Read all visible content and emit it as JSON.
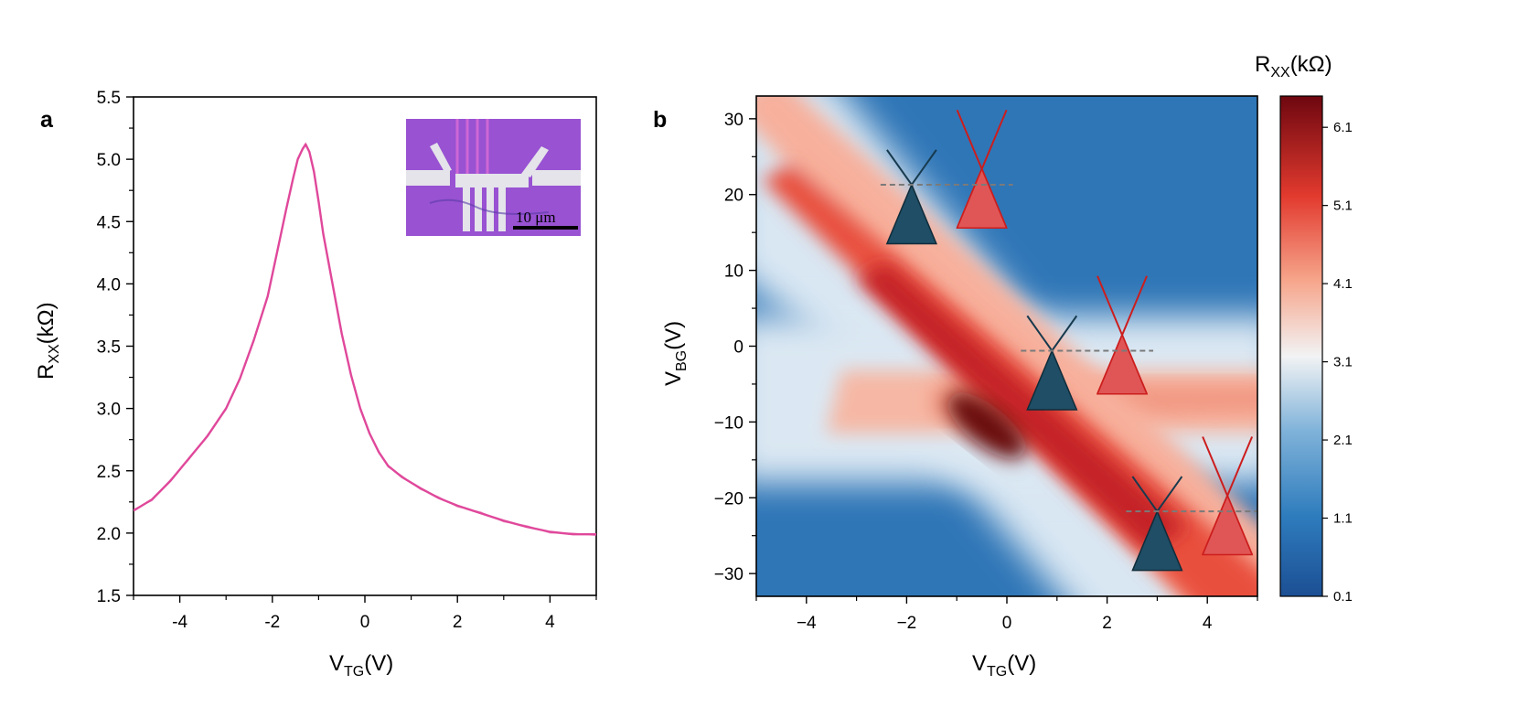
{
  "chart_data": [
    {
      "panel": "a",
      "type": "line",
      "xlabel": "V",
      "xlabel_sub": "TG",
      "xlabel_tail": "(V)",
      "ylabel": "R",
      "ylabel_sub": "XX",
      "ylabel_tail": "(kΩ)",
      "xlim": [
        -5,
        5
      ],
      "ylim": [
        1.5,
        5.5
      ],
      "xticks": [
        -4,
        -2,
        0,
        2,
        4
      ],
      "xtick_labels": [
        "-4",
        "-2",
        "0",
        "2",
        "4"
      ],
      "yticks": [
        1.5,
        2.0,
        2.5,
        3.0,
        3.5,
        4.0,
        4.5,
        5.0,
        5.5
      ],
      "ytick_labels": [
        "1.5",
        "2.0",
        "2.5",
        "3.0",
        "3.5",
        "4.0",
        "4.5",
        "5.0",
        "5.5"
      ],
      "line_color": "#e0489b",
      "series": [
        {
          "name": "Rxx",
          "x": [
            -5.0,
            -4.6,
            -4.2,
            -3.8,
            -3.4,
            -3.0,
            -2.7,
            -2.4,
            -2.1,
            -1.9,
            -1.7,
            -1.55,
            -1.45,
            -1.35,
            -1.28,
            -1.2,
            -1.1,
            -1.0,
            -0.9,
            -0.7,
            -0.5,
            -0.3,
            -0.1,
            0.1,
            0.3,
            0.5,
            0.8,
            1.2,
            1.6,
            2.0,
            2.5,
            3.0,
            3.5,
            4.0,
            4.5,
            5.0
          ],
          "y": [
            2.18,
            2.27,
            2.42,
            2.6,
            2.78,
            3.0,
            3.24,
            3.55,
            3.9,
            4.25,
            4.6,
            4.85,
            5.0,
            5.08,
            5.12,
            5.06,
            4.9,
            4.66,
            4.4,
            4.0,
            3.6,
            3.27,
            3.0,
            2.8,
            2.65,
            2.54,
            2.45,
            2.36,
            2.28,
            2.22,
            2.16,
            2.1,
            2.05,
            2.01,
            1.99,
            1.99
          ]
        }
      ],
      "inset": {
        "description_label": "10 μm",
        "background_color": "#a05ad8",
        "contact_color": "#e4e4ea"
      }
    },
    {
      "panel": "b",
      "type": "heatmap",
      "xlabel": "V",
      "xlabel_sub": "TG",
      "xlabel_tail": "(V)",
      "ylabel": "V",
      "ylabel_sub": "BG",
      "ylabel_tail": "(V)",
      "xlim": [
        -5,
        5
      ],
      "ylim": [
        -33,
        33
      ],
      "xticks": [
        -4,
        -2,
        0,
        2,
        4
      ],
      "xtick_labels": [
        "−4",
        "−2",
        "0",
        "2",
        "4"
      ],
      "yticks": [
        -30,
        -20,
        -10,
        0,
        10,
        20,
        30
      ],
      "ytick_labels": [
        "−30",
        "−20",
        "−10",
        "0",
        "10",
        "20",
        "30"
      ],
      "features": {
        "diagonal_ridge": {
          "from": [
            -5,
            26
          ],
          "to": [
            5,
            -36
          ],
          "peak_at": [
            -0.4,
            -10
          ],
          "peak_value": 6.1
        },
        "horizontal_ridge": {
          "vbg": -7,
          "from_vtg": -3.5,
          "to_vtg": 5
        }
      },
      "colorbar": {
        "title": "R",
        "title_sub": "XX",
        "title_tail": "(kΩ)",
        "range": [
          0.1,
          6.5
        ],
        "ticks": [
          0.1,
          1.1,
          2.1,
          3.1,
          4.1,
          5.1,
          6.1
        ],
        "tick_labels": [
          "0.1",
          "1.1",
          "2.1",
          "3.1",
          "4.1",
          "5.1",
          "6.1"
        ],
        "colors": [
          "#1c4f94",
          "#2e7cbd",
          "#7fb2d9",
          "#f2f3f4",
          "#f6a68c",
          "#e23a2e",
          "#6e0710"
        ]
      },
      "cones": {
        "dark_color": "#1f4e66",
        "red_color": "#e05656",
        "red_line": "#cc1d1d",
        "dashed_color": "#7a7a7a",
        "pairs": [
          {
            "left_vtg": -1.9,
            "right_vtg": -0.5,
            "level_vbg": 21.3
          },
          {
            "left_vtg": 0.9,
            "right_vtg": 2.3,
            "level_vbg": -0.6
          },
          {
            "left_vtg": 3.0,
            "right_vtg": 4.4,
            "level_vbg": -21.8
          }
        ]
      }
    }
  ]
}
